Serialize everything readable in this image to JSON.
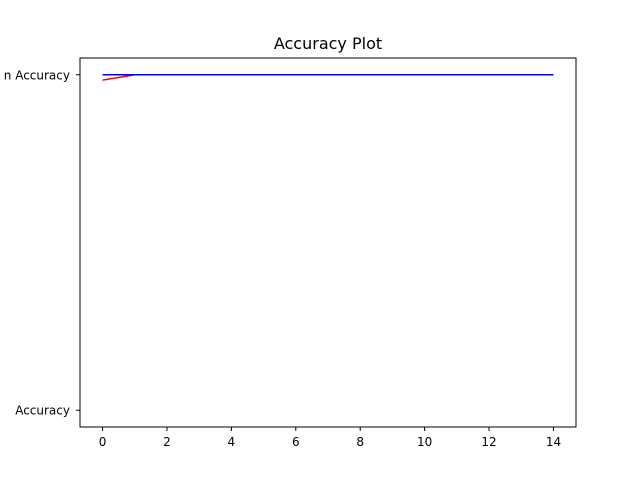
{
  "chart_data": {
    "type": "line",
    "title": "Accuracy Plot",
    "xlabel": "",
    "ylabel": "",
    "x": [
      0,
      1,
      2,
      3,
      4,
      5,
      6,
      7,
      8,
      9,
      10,
      11,
      12,
      13,
      14
    ],
    "xlim": [
      -0.7,
      14.7
    ],
    "xticks": [
      0,
      2,
      4,
      6,
      8,
      10,
      12,
      14
    ],
    "xtick_labels": [
      "0",
      "2",
      "4",
      "6",
      "8",
      "10",
      "12",
      "14"
    ],
    "y_categories": [
      "Accuracy",
      "Validation Accuracy"
    ],
    "y_tick_labels": [
      "Accuracy",
      "n Accuracy"
    ],
    "ylim": [
      -0.05,
      1.05
    ],
    "grid": false,
    "series": [
      {
        "color": "#ff0000",
        "values": [
          0.984,
          1,
          1,
          1,
          1,
          1,
          1,
          1,
          1,
          1,
          1,
          1,
          1,
          1,
          1
        ]
      },
      {
        "color": "#0000ff",
        "values": [
          1,
          1,
          1,
          1,
          1,
          1,
          1,
          1,
          1,
          1,
          1,
          1,
          1,
          1,
          1
        ]
      }
    ]
  }
}
